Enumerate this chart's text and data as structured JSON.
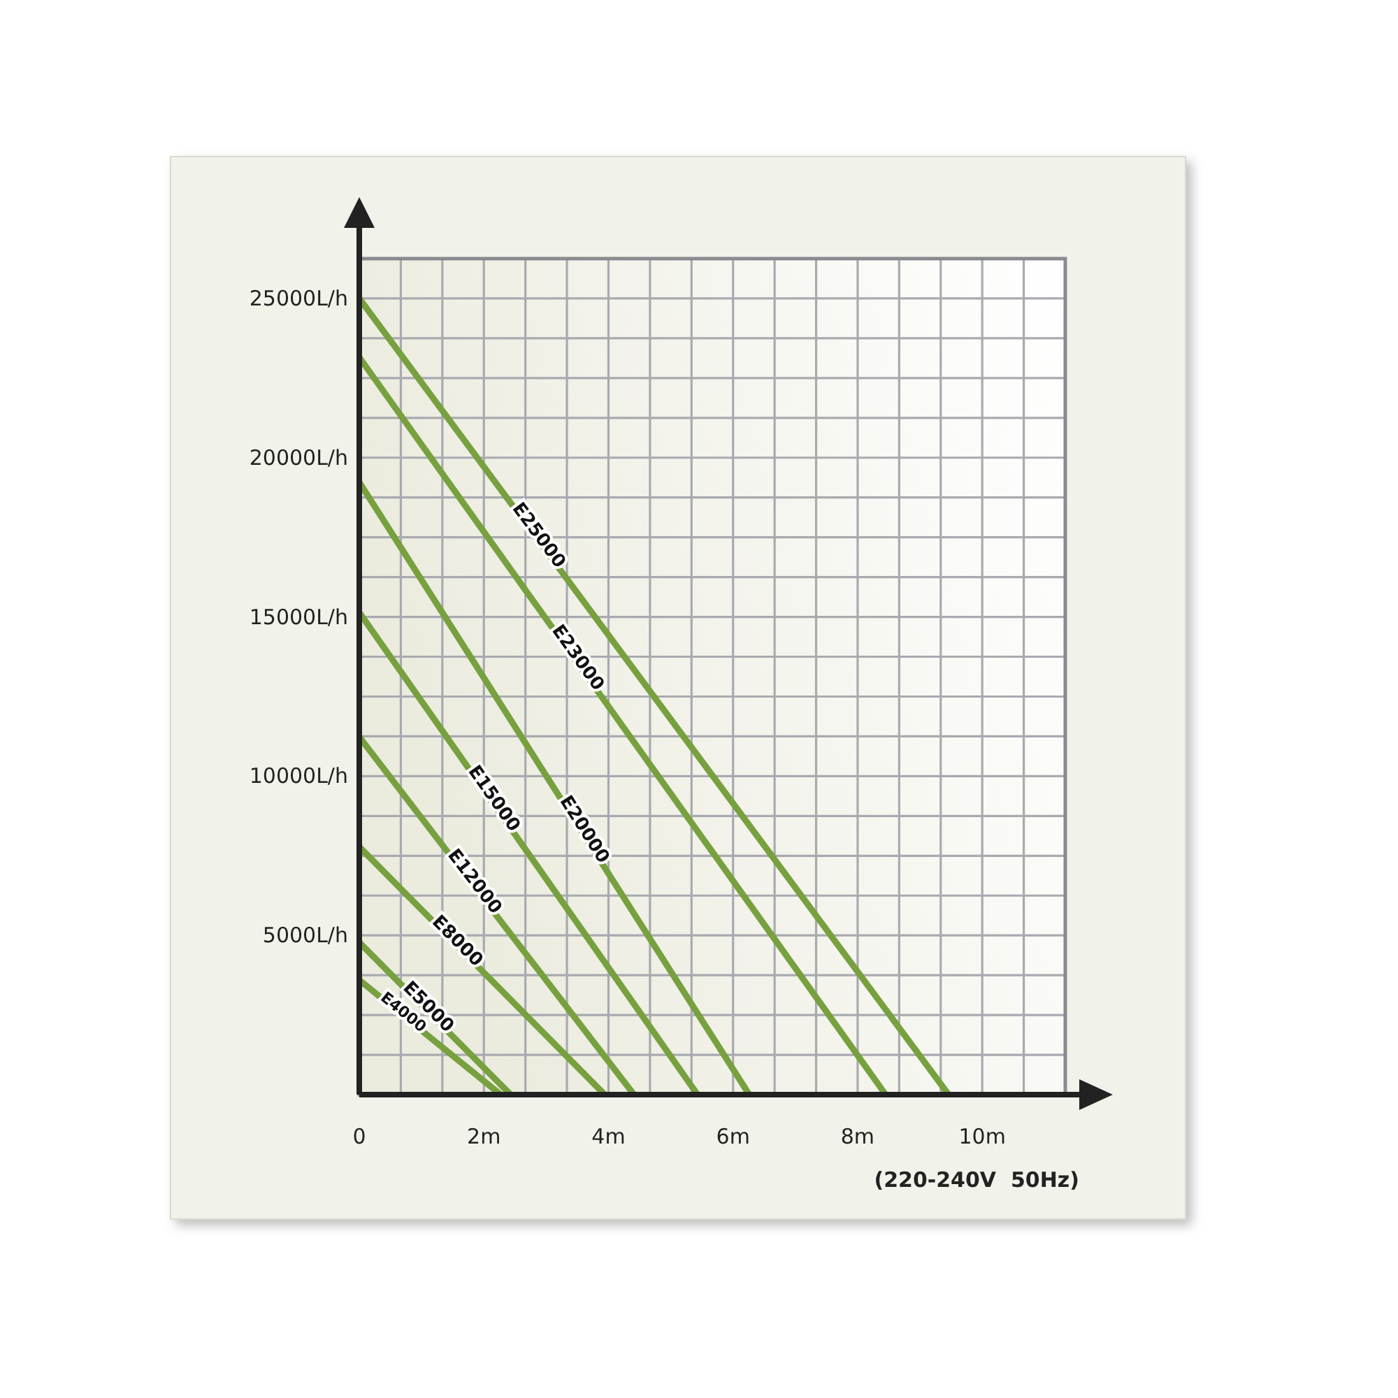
{
  "chart_data": {
    "type": "line",
    "xlabel": "(220-240V  50Hz)",
    "xlim": [
      0,
      11.333
    ],
    "ylim": [
      0,
      26250
    ],
    "xticks": [
      0,
      {
        "value": 2,
        "label": "2m"
      },
      {
        "value": 4,
        "label": "4m"
      },
      {
        "value": 6,
        "label": "6m"
      },
      {
        "value": 8,
        "label": "8m"
      },
      {
        "value": 10,
        "label": "10m"
      }
    ],
    "yticks": [
      {
        "value": 5000,
        "label": "5000L/h"
      },
      {
        "value": 10000,
        "label": "10000L/h"
      },
      {
        "value": 15000,
        "label": "15000L/h"
      },
      {
        "value": 20000,
        "label": "20000L/h"
      },
      {
        "value": 25000,
        "label": "25000L/h"
      }
    ],
    "grid": true,
    "line_style": "solid",
    "series": [
      {
        "name": "E25000",
        "color": "#77a03f",
        "x": [
          0,
          9.46
        ],
        "values": [
          25000,
          0
        ]
      },
      {
        "name": "E23000",
        "color": "#77a03f",
        "x": [
          0,
          8.45
        ],
        "values": [
          23150,
          0
        ]
      },
      {
        "name": "E20000",
        "color": "#77a03f",
        "x": [
          0,
          6.26
        ],
        "values": [
          19230,
          0
        ]
      },
      {
        "name": "E15000",
        "color": "#77a03f",
        "x": [
          0,
          5.43
        ],
        "values": [
          15140,
          0
        ]
      },
      {
        "name": "E12000",
        "color": "#77a03f",
        "x": [
          0,
          4.41
        ],
        "values": [
          11230,
          0
        ]
      },
      {
        "name": "E8000",
        "color": "#77a03f",
        "x": [
          0,
          3.94
        ],
        "values": [
          7780,
          0
        ]
      },
      {
        "name": "E5000",
        "color": "#77a03f",
        "x": [
          0,
          2.43
        ],
        "values": [
          4780,
          0
        ]
      },
      {
        "name": "E4000",
        "color": "#77a03f",
        "x": [
          0,
          2.27
        ],
        "values": [
          3600,
          0
        ]
      }
    ]
  }
}
